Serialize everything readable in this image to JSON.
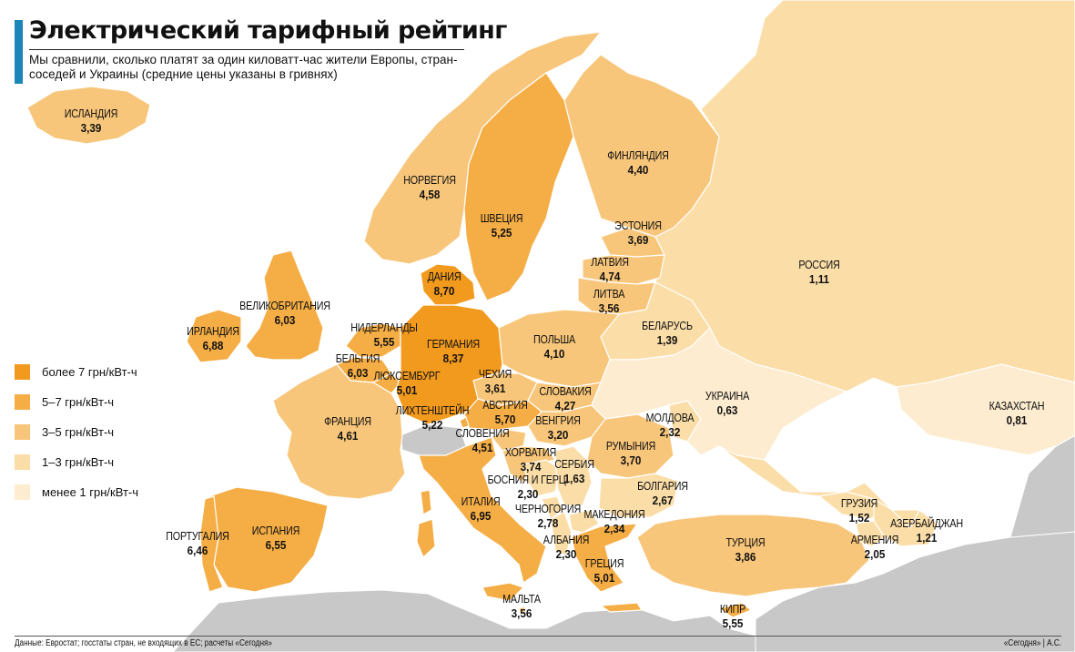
{
  "title": "Электрический тарифный рейтинг",
  "subtitle": "Мы сравнили, сколько платят за один киловатт-час жители Европы, стран-соседей и Украины (средние цены указаны в гривнях)",
  "colors": {
    "accent": "#1a87b8",
    "sea": "#ffffff",
    "non_compared_land": "#c8c8c8",
    "border": "#ffffff"
  },
  "legend": [
    {
      "label": "более 7 грн/кВт-ч",
      "color": "#f29a1e"
    },
    {
      "label": "5–7 грн/кВт-ч",
      "color": "#f5ad45"
    },
    {
      "label": "3–5 грн/кВт-ч",
      "color": "#f8c67a"
    },
    {
      "label": "1–3 грн/кВт-ч",
      "color": "#fbdda8"
    },
    {
      "label": "менее 1 грн/кВт-ч",
      "color": "#fdecd0"
    }
  ],
  "countries": [
    {
      "name": "ИСЛАНДИЯ",
      "value": "3,39"
    },
    {
      "name": "НОРВЕГИЯ",
      "value": "4,58"
    },
    {
      "name": "ШВЕЦИЯ",
      "value": "5,25"
    },
    {
      "name": "ФИНЛЯНДИЯ",
      "value": "4,40"
    },
    {
      "name": "ЭСТОНИЯ",
      "value": "3,69"
    },
    {
      "name": "ЛАТВИЯ",
      "value": "4,74"
    },
    {
      "name": "ЛИТВА",
      "value": "3,56"
    },
    {
      "name": "ДАНИЯ",
      "value": "8,70"
    },
    {
      "name": "ВЕЛИКОБРИТАНИЯ",
      "value": "6,03"
    },
    {
      "name": "ИРЛАНДИЯ",
      "value": "6,88"
    },
    {
      "name": "НИДЕРЛАНДЫ",
      "value": "5,55"
    },
    {
      "name": "БЕЛЬГИЯ",
      "value": "6,03"
    },
    {
      "name": "ЛЮКСЕМБУРГ",
      "value": "5,01"
    },
    {
      "name": "ГЕРМАНИЯ",
      "value": "8,37"
    },
    {
      "name": "ПОЛЬША",
      "value": "4,10"
    },
    {
      "name": "БЕЛАРУСЬ",
      "value": "1,39"
    },
    {
      "name": "РОССИЯ",
      "value": "1,11"
    },
    {
      "name": "ЧЕХИЯ",
      "value": "3,61"
    },
    {
      "name": "СЛОВАКИЯ",
      "value": "4,27"
    },
    {
      "name": "АВСТРИЯ",
      "value": "5,70"
    },
    {
      "name": "ЛИХТЕНШТЕЙН",
      "value": "5,22"
    },
    {
      "name": "ФРАНЦИЯ",
      "value": "4,61"
    },
    {
      "name": "ВЕНГРИЯ",
      "value": "3,20"
    },
    {
      "name": "СЛОВЕНИЯ",
      "value": "4,51"
    },
    {
      "name": "ХОРВАТИЯ",
      "value": "3,74"
    },
    {
      "name": "УКРАИНА",
      "value": "0,63"
    },
    {
      "name": "МОЛДОВА",
      "value": "2,32"
    },
    {
      "name": "РУМЫНИЯ",
      "value": "3,70"
    },
    {
      "name": "СЕРБИЯ",
      "value": "1,63"
    },
    {
      "name": "БОСНИЯ И ГЕРЦ.",
      "value": "2,30"
    },
    {
      "name": "БОЛГАРИЯ",
      "value": "2,67"
    },
    {
      "name": "КАЗАХСТАН",
      "value": "0,81"
    },
    {
      "name": "ИТАЛИЯ",
      "value": "6,95"
    },
    {
      "name": "ЧЕРНОГОРИЯ",
      "value": "2,78"
    },
    {
      "name": "МАКЕДОНИЯ",
      "value": "2,34"
    },
    {
      "name": "АЛБАНИЯ",
      "value": "2,30"
    },
    {
      "name": "ГРУЗИЯ",
      "value": "1,52"
    },
    {
      "name": "АЗЕРБАЙДЖАН",
      "value": "1,21"
    },
    {
      "name": "АРМЕНИЯ",
      "value": "2,05"
    },
    {
      "name": "ТУРЦИЯ",
      "value": "3,86"
    },
    {
      "name": "ПОРТУГАЛИЯ",
      "value": "6,46"
    },
    {
      "name": "ИСПАНИЯ",
      "value": "6,55"
    },
    {
      "name": "ГРЕЦИЯ",
      "value": "5,01"
    },
    {
      "name": "МАЛЬТА",
      "value": "3,56"
    },
    {
      "name": "КИПР",
      "value": "5,55"
    }
  ],
  "footer": {
    "source": "Данные: Евростат; госстаты стран, не входящих в ЕС; расчеты «Сегодня»",
    "credit": "«Сегодня» | А.С."
  }
}
